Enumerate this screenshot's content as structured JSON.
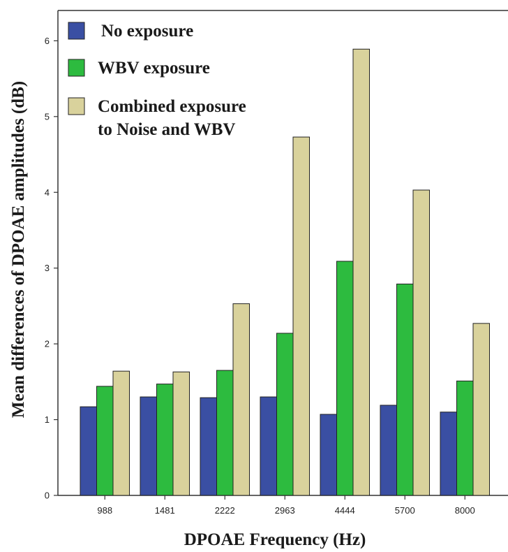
{
  "chart_data": {
    "type": "bar",
    "xlabel": "DPOAE Frequency (Hz)",
    "ylabel": "Mean differences of DPOAE amplitudes (dB)",
    "categories": [
      "988",
      "1481",
      "2222",
      "2963",
      "4444",
      "5700",
      "8000"
    ],
    "ylim": [
      0,
      6.4
    ],
    "yticks": [
      "0",
      "1",
      "2",
      "3",
      "4",
      "5",
      "6"
    ],
    "grid": false,
    "legend_position": "top-left",
    "series": [
      {
        "name": "No exposure",
        "color": "#3a4fa3",
        "values": [
          1.17,
          1.3,
          1.29,
          1.3,
          1.07,
          1.19,
          1.1
        ]
      },
      {
        "name": "WBV exposure",
        "color": "#2dbb3f",
        "values": [
          1.44,
          1.47,
          1.65,
          2.14,
          3.09,
          2.79,
          1.51
        ]
      },
      {
        "name": "Combined exposure to Noise and WBV",
        "color": "#d9d29c",
        "legend_lines": [
          "Combined exposure",
          "to Noise and WBV"
        ],
        "values": [
          1.64,
          1.63,
          2.53,
          4.73,
          5.89,
          4.03,
          2.27
        ]
      }
    ]
  }
}
